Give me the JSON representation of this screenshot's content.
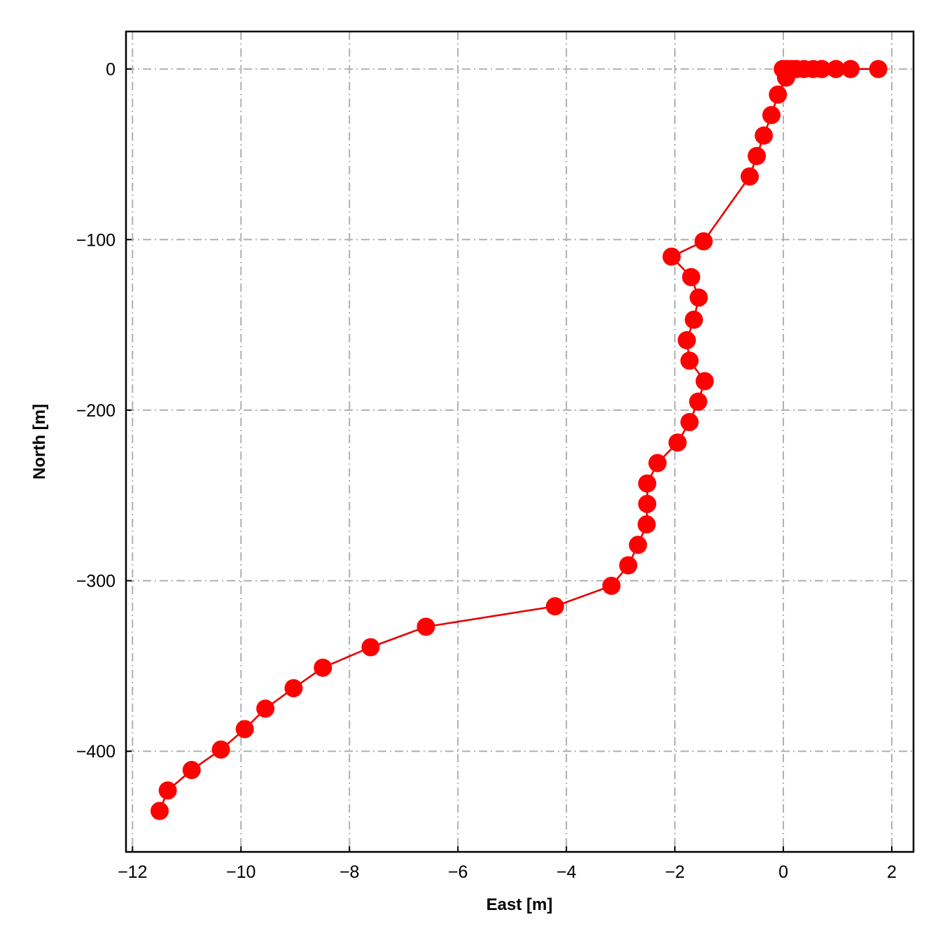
{
  "chart_data": {
    "type": "line",
    "title": "",
    "xlabel": "East [m]",
    "ylabel": "North [m]",
    "xlim": [
      -12.12,
      2.4
    ],
    "ylim": [
      -459,
      22
    ],
    "xticks": [
      -12,
      -10,
      -8,
      -6,
      -4,
      -2,
      0,
      2
    ],
    "yticks": [
      0,
      -100,
      -200,
      -300,
      -400
    ],
    "xtick_labels": [
      "−12",
      "−10",
      "−8",
      "−6",
      "−4",
      "−2",
      "0",
      "2"
    ],
    "ytick_labels": [
      "0",
      "−100",
      "−200",
      "−300",
      "−400"
    ],
    "grid": true,
    "legend": "none",
    "colors": {
      "series": "#ff0000",
      "grid": "#b0b0b0"
    },
    "series": [
      {
        "marker": "circle",
        "x": [
          1.75,
          1.24,
          0.97,
          0.71,
          0.55,
          0.38,
          0.24,
          0.15,
          0.08,
          0.03,
          -0.01,
          0.05,
          -0.1,
          -0.22,
          -0.36,
          -0.49,
          -0.62,
          -1.47,
          -2.06,
          -1.7,
          -1.56,
          -1.65,
          -1.78,
          -1.73,
          -1.45,
          -1.57,
          -1.73,
          -1.95,
          -2.32,
          -2.51,
          -2.51,
          -2.52,
          -2.68,
          -2.86,
          -3.17,
          -4.21,
          -6.59,
          -7.61,
          -8.49,
          -9.03,
          -9.55,
          -9.93,
          -10.37,
          -10.91,
          -11.35,
          -11.5
        ],
        "y": [
          0,
          0,
          0,
          0,
          0,
          0,
          0,
          0,
          0,
          0,
          0,
          -5,
          -15,
          -27,
          -39,
          -51,
          -63,
          -101,
          -110,
          -122,
          -134,
          -147,
          -159,
          -171,
          -183,
          -195,
          -207,
          -219,
          -231,
          -243,
          -255,
          -267,
          -279,
          -291,
          -303,
          -315,
          -327,
          -339,
          -351,
          -363,
          -375,
          -387,
          -399,
          -411,
          -423,
          -435
        ]
      }
    ]
  }
}
